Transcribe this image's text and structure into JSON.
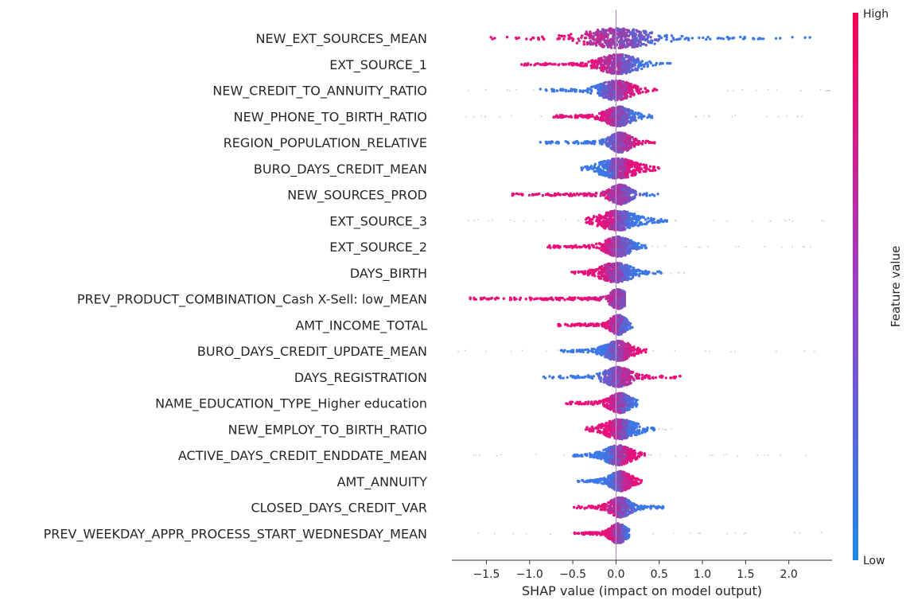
{
  "chart_data": {
    "type": "scatter",
    "subtype": "shap-beeswarm",
    "xlabel": "SHAP value (impact on model output)",
    "ylabel": "",
    "xlim": [
      -1.9,
      2.5
    ],
    "x_ticks": [
      -1.5,
      -1.0,
      -0.5,
      0.0,
      0.5,
      1.0,
      1.5,
      2.0
    ],
    "x_tick_labels": [
      "−1.5",
      "−1.0",
      "−0.5",
      "0.0",
      "0.5",
      "1.0",
      "1.5",
      "2.0"
    ],
    "grid": false,
    "zero_line": true,
    "colorbar": {
      "title": "Feature value",
      "high_label": "High",
      "low_label": "Low",
      "high_color": "#ff0052",
      "low_color": "#008bfb",
      "placement": "right"
    },
    "features": [
      {
        "name": "NEW_EXT_SOURCES_MEAN",
        "min": -1.5,
        "max": 2.25,
        "core_low": -0.3,
        "core_high": 0.35,
        "red_side": "left",
        "sparse_low": -1.5,
        "sparse_high": 2.25
      },
      {
        "name": "EXT_SOURCE_1",
        "min": -1.1,
        "max": 0.65,
        "core_low": -0.15,
        "core_high": 0.2,
        "red_side": "left",
        "sparse_low": -1.1,
        "sparse_high": 0.65
      },
      {
        "name": "NEW_CREDIT_TO_ANNUITY_RATIO",
        "min": -0.9,
        "max": 0.5,
        "core_low": -0.15,
        "core_high": 0.15,
        "red_side": "right",
        "sparse_low": -1.85,
        "sparse_high": 2.5
      },
      {
        "name": "NEW_PHONE_TO_BIRTH_RATIO",
        "min": -0.75,
        "max": 0.45,
        "core_low": -0.1,
        "core_high": 0.15,
        "red_side": "left",
        "sparse_low": -1.85,
        "sparse_high": 2.5
      },
      {
        "name": "REGION_POPULATION_RELATIVE",
        "min": -0.9,
        "max": 0.45,
        "core_low": -0.05,
        "core_high": 0.15,
        "red_side": "right",
        "sparse_low": -0.9,
        "sparse_high": 0.45
      },
      {
        "name": "BURO_DAYS_CREDIT_MEAN",
        "min": -0.4,
        "max": 0.5,
        "core_low": -0.15,
        "core_high": 0.2,
        "red_side": "right",
        "sparse_low": -0.4,
        "sparse_high": 0.5
      },
      {
        "name": "NEW_SOURCES_PROD",
        "min": -1.2,
        "max": 0.55,
        "core_low": -0.05,
        "core_high": 0.15,
        "red_side": "left",
        "sparse_low": -1.2,
        "sparse_high": 0.55
      },
      {
        "name": "EXT_SOURCE_3",
        "min": -0.35,
        "max": 0.6,
        "core_low": -0.15,
        "core_high": 0.2,
        "red_side": "left",
        "sparse_low": -1.85,
        "sparse_high": 2.5
      },
      {
        "name": "EXT_SOURCE_2",
        "min": -0.8,
        "max": 0.35,
        "core_low": -0.1,
        "core_high": 0.15,
        "red_side": "left",
        "sparse_low": -0.8,
        "sparse_high": 2.5
      },
      {
        "name": "DAYS_BIRTH",
        "min": -0.55,
        "max": 0.55,
        "core_low": -0.15,
        "core_high": 0.15,
        "red_side": "left",
        "sparse_low": -0.55,
        "sparse_high": 0.85
      },
      {
        "name": "PREV_PRODUCT_COMBINATION_Cash X-Sell: low_MEAN",
        "min": -1.7,
        "max": 0.1,
        "core_low": -0.05,
        "core_high": 0.1,
        "red_side": "left",
        "sparse_low": -1.7,
        "sparse_high": 0.1
      },
      {
        "name": "AMT_INCOME_TOTAL",
        "min": -0.7,
        "max": 0.2,
        "core_low": -0.05,
        "core_high": 0.1,
        "red_side": "left",
        "sparse_low": -0.7,
        "sparse_high": 0.2
      },
      {
        "name": "BURO_DAYS_CREDIT_UPDATE_MEAN",
        "min": -0.65,
        "max": 0.35,
        "core_low": -0.1,
        "core_high": 0.15,
        "red_side": "right",
        "sparse_low": -1.85,
        "sparse_high": 2.3
      },
      {
        "name": "DAYS_REGISTRATION",
        "min": -0.85,
        "max": 0.75,
        "core_low": -0.1,
        "core_high": 0.15,
        "red_side": "right",
        "sparse_low": -0.85,
        "sparse_high": 0.75
      },
      {
        "name": "NAME_EDUCATION_TYPE_Higher education",
        "min": -0.6,
        "max": 0.25,
        "core_low": -0.05,
        "core_high": 0.15,
        "red_side": "left",
        "sparse_low": -0.6,
        "sparse_high": 0.25
      },
      {
        "name": "NEW_EMPLOY_TO_BIRTH_RATIO",
        "min": -0.35,
        "max": 0.45,
        "core_low": -0.1,
        "core_high": 0.2,
        "red_side": "left",
        "sparse_low": -0.35,
        "sparse_high": 0.75
      },
      {
        "name": "ACTIVE_DAYS_CREDIT_ENDDATE_MEAN",
        "min": -0.5,
        "max": 0.35,
        "core_low": -0.1,
        "core_high": 0.15,
        "red_side": "right",
        "sparse_low": -1.85,
        "sparse_high": 2.4
      },
      {
        "name": "AMT_ANNUITY",
        "min": -0.45,
        "max": 0.3,
        "core_low": -0.05,
        "core_high": 0.15,
        "red_side": "right",
        "sparse_low": -0.45,
        "sparse_high": 0.3
      },
      {
        "name": "CLOSED_DAYS_CREDIT_VAR",
        "min": -0.5,
        "max": 0.55,
        "core_low": -0.05,
        "core_high": 0.15,
        "red_side": "left",
        "sparse_low": -0.5,
        "sparse_high": 0.55
      },
      {
        "name": "PREV_WEEKDAY_APPR_PROCESS_START_WEDNESDAY_MEAN",
        "min": -0.5,
        "max": 0.15,
        "core_low": -0.05,
        "core_high": 0.1,
        "red_side": "left",
        "sparse_low": -1.8,
        "sparse_high": 2.4
      }
    ]
  }
}
